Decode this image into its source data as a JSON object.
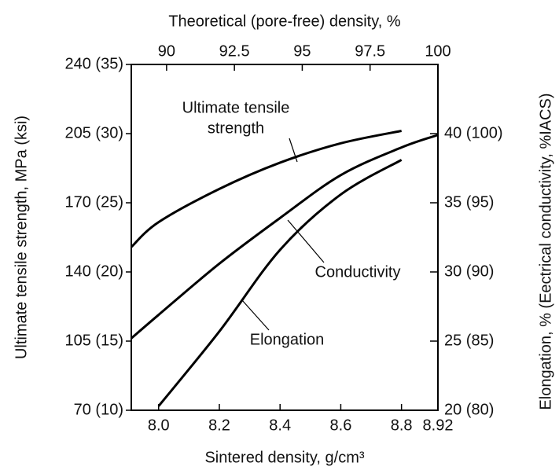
{
  "chart_data": {
    "type": "line",
    "title": "Theoretical (pore-free) density, %",
    "xlabel": "Sintered density, g/cm³",
    "ylabel": "Ultimate tensile strength, MPa (ksi)",
    "y2label": "Elongation, % (Eectrical conductivity, %IACS)",
    "x": [
      7.91,
      8.0,
      8.2,
      8.4,
      8.6,
      8.8,
      8.92
    ],
    "xlim": [
      7.91,
      8.92
    ],
    "xticks": [
      {
        "value": 8.0,
        "label": "8.0"
      },
      8.2,
      8.4,
      8.6,
      8.8,
      8.92
    ],
    "x2lim": [
      88.7,
      100
    ],
    "x2ticks": [
      90,
      92.5,
      95,
      97.5,
      100
    ],
    "ylim": [
      10,
      35
    ],
    "yticks": [
      {
        "value": 10,
        "label": "70 (10)"
      },
      {
        "value": 15,
        "label": "105 (15)"
      },
      {
        "value": 20,
        "label": "140 (20)"
      },
      {
        "value": 25,
        "label": "170 (25)"
      },
      {
        "value": 30,
        "label": "205 (30)"
      },
      {
        "value": 35,
        "label": "240 (35)"
      }
    ],
    "y2lim": [
      20,
      45
    ],
    "y2ticks": [
      {
        "value": 20,
        "label": "20 (80)"
      },
      {
        "value": 25,
        "label": "25 (85)"
      },
      {
        "value": 30,
        "label": "30 (90)"
      },
      {
        "value": 35,
        "label": "35 (95)"
      },
      {
        "value": 40,
        "label": "40 (100)"
      }
    ],
    "series": [
      {
        "name": "Ultimate tensile strength",
        "color": "#000000",
        "axis": "y",
        "values": [
          21.8,
          23.6,
          26.0,
          27.9,
          29.3,
          30.2,
          null
        ]
      },
      {
        "name": "Conductivity",
        "color": "#000000",
        "axis": "y2",
        "values": [
          25.2,
          26.9,
          30.6,
          33.9,
          37.0,
          39.0,
          39.9
        ]
      },
      {
        "name": "Elongation",
        "color": "#000000",
        "axis": "y2",
        "values": [
          null,
          20.3,
          25.7,
          31.6,
          35.6,
          38.1,
          null
        ]
      }
    ],
    "annotations": [
      "Ultimate tensile",
      "strength",
      "Conductivity",
      "Elongation"
    ]
  }
}
